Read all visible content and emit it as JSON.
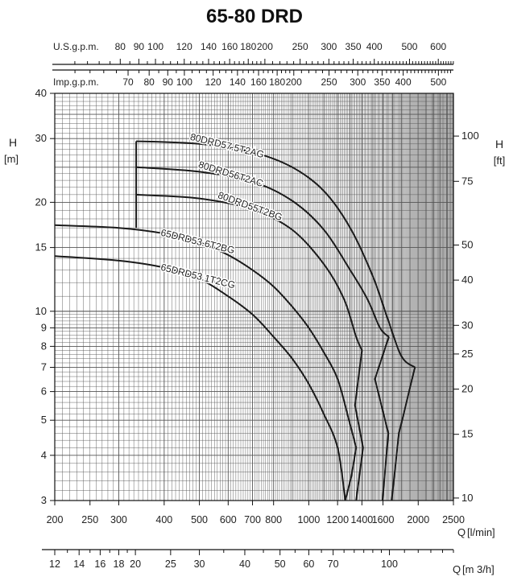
{
  "chart_data": {
    "type": "line",
    "title": "65-80 DRD",
    "xlabel": "Q [l/min]",
    "xlabel_q": "Q",
    "xlabel_unit": "[l/min]",
    "xlabel_m3h_q": "Q",
    "xlabel_m3h_unit": "[m 3/h]",
    "ylabel_left": "H",
    "ylabel_left_unit": "[m]",
    "ylabel_right": "H",
    "ylabel_right_unit": "[ft]",
    "xscale": "log",
    "yscale": "log",
    "xlim": [
      200,
      2500
    ],
    "ylim": [
      3,
      40
    ],
    "grid": true,
    "x_ticks": [
      200,
      250,
      300,
      400,
      500,
      600,
      700,
      800,
      1000,
      1200,
      1400,
      1600,
      2000,
      2500
    ],
    "y_ticks_m": [
      3,
      4,
      5,
      6,
      7,
      8,
      9,
      10,
      15,
      20,
      30,
      40
    ],
    "y_ticks_ft": [
      10,
      15,
      20,
      25,
      30,
      40,
      50,
      75,
      100
    ],
    "m3h_ticks": [
      12,
      14,
      16,
      18,
      20,
      25,
      30,
      40,
      50,
      60,
      70,
      100
    ],
    "usgpm_label": "U.S.g.p.m.",
    "usgpm_ticks": [
      80,
      90,
      100,
      120,
      140,
      160,
      180,
      200,
      250,
      300,
      350,
      400,
      500,
      600
    ],
    "impgpm_label": "Imp.g.p.m.",
    "impgpm_ticks": [
      70,
      80,
      90,
      100,
      120,
      140,
      160,
      180,
      200,
      250,
      300,
      350,
      400,
      500
    ],
    "series": [
      {
        "name": "80DRD57.5T2AG",
        "curve": [
          [
            335,
            29.5
          ],
          [
            500,
            29.0
          ],
          [
            700,
            27.5
          ],
          [
            900,
            25.0
          ],
          [
            1100,
            21.5
          ],
          [
            1300,
            17.0
          ],
          [
            1500,
            12.5
          ],
          [
            1650,
            9.5
          ],
          [
            1800,
            7.5
          ],
          [
            1960,
            7.0
          ]
        ],
        "tail": [
          [
            1960,
            7.0
          ],
          [
            1770,
            4.6
          ],
          [
            1690,
            3.0
          ]
        ]
      },
      {
        "name": "80DRD56T2AC",
        "curve": [
          [
            335,
            25.0
          ],
          [
            500,
            24.3
          ],
          [
            700,
            22.8
          ],
          [
            900,
            20.2
          ],
          [
            1100,
            16.8
          ],
          [
            1300,
            13.0
          ],
          [
            1450,
            10.8
          ],
          [
            1570,
            9.0
          ],
          [
            1660,
            8.5
          ]
        ],
        "tail": [
          [
            1660,
            8.5
          ],
          [
            1520,
            6.5
          ],
          [
            1655,
            4.6
          ],
          [
            1595,
            3.0
          ]
        ]
      },
      {
        "name": "80DRD55T2BG",
        "curve": [
          [
            335,
            21.0
          ],
          [
            500,
            20.5
          ],
          [
            700,
            19.1
          ],
          [
            900,
            16.8
          ],
          [
            1100,
            13.5
          ],
          [
            1250,
            10.8
          ],
          [
            1350,
            8.5
          ],
          [
            1400,
            7.8
          ]
        ],
        "tail": [
          [
            1400,
            7.8
          ],
          [
            1340,
            5.5
          ],
          [
            1410,
            4.2
          ],
          [
            1350,
            3.0
          ]
        ]
      },
      {
        "name": "65DRD53.6T2BG",
        "curve": [
          [
            200,
            17.3
          ],
          [
            300,
            17.0
          ],
          [
            400,
            16.4
          ],
          [
            500,
            15.5
          ],
          [
            600,
            14.3
          ],
          [
            700,
            13.0
          ],
          [
            800,
            11.7
          ],
          [
            900,
            10.3
          ],
          [
            1000,
            9.0
          ],
          [
            1100,
            7.7
          ],
          [
            1200,
            6.5
          ],
          [
            1290,
            5.0
          ],
          [
            1350,
            4.2
          ]
        ],
        "tail": [
          [
            1350,
            4.2
          ],
          [
            1310,
            3.5
          ],
          [
            1260,
            3.0
          ]
        ]
      },
      {
        "name": "65DRD53.1T2CG",
        "curve": [
          [
            200,
            14.2
          ],
          [
            300,
            13.8
          ],
          [
            400,
            13.2
          ],
          [
            500,
            12.3
          ],
          [
            600,
            11.0
          ],
          [
            700,
            9.8
          ],
          [
            800,
            8.5
          ],
          [
            900,
            7.4
          ],
          [
            1000,
            6.3
          ],
          [
            1100,
            5.2
          ],
          [
            1200,
            4.2
          ],
          [
            1260,
            3.0
          ]
        ],
        "tail": []
      }
    ],
    "riser": [
      [
        335,
        17.0
      ],
      [
        335,
        29.5
      ]
    ]
  }
}
